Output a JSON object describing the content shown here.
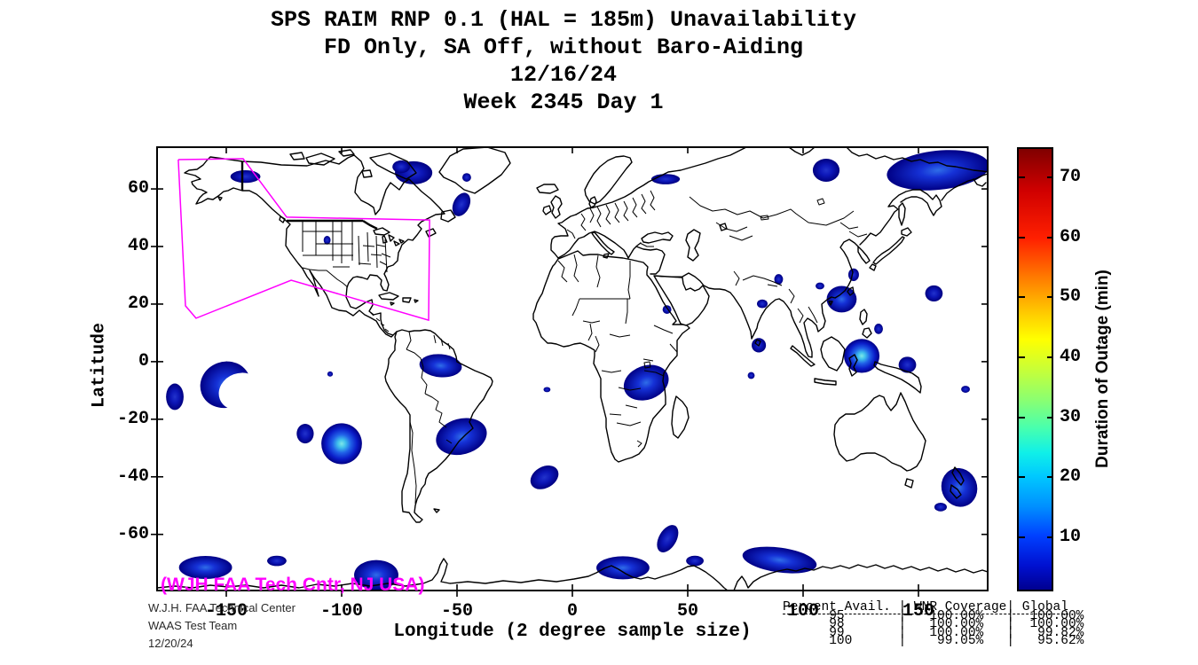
{
  "title_lines": [
    "SPS RAIM RNP 0.1 (HAL = 185m) Unavailability",
    "FD Only, SA Off, without Baro-Aiding",
    "12/16/24",
    "Week 2345 Day 1"
  ],
  "axes": {
    "xlabel": "Longitude (2 degree sample size)",
    "ylabel": "Latitude",
    "x_ticks": [
      -150,
      -100,
      -50,
      0,
      50,
      100,
      150
    ],
    "y_ticks": [
      60,
      40,
      20,
      0,
      -20,
      -40,
      -60
    ],
    "lon_range": [
      -180,
      180
    ],
    "lat_range": [
      -79.5,
      74.5
    ]
  },
  "colorbar": {
    "label": "Duration of Outage (min)",
    "ticks": [
      10,
      20,
      30,
      40,
      50,
      60,
      70
    ],
    "range": [
      1,
      75
    ],
    "colormap": "jet"
  },
  "annotations": {
    "facility": "(WJH FAA Tech Cntr, NJ USA)",
    "credit_lines": [
      "W.J.H. FAA Technical Center",
      "WAAS Test Team",
      "12/20/24"
    ]
  },
  "stats_table": {
    "columns": [
      "Percent Avail.",
      "WNR Coverage",
      "Global"
    ],
    "rows": [
      [
        "95",
        "100.00%",
        "100.00%"
      ],
      [
        "98",
        "100.00%",
        "100.00%"
      ],
      [
        "99",
        "100.00%",
        "99.82%"
      ],
      [
        "100",
        "99.05%",
        "95.62%"
      ]
    ]
  },
  "colors": {
    "coverage_boundary": "#ff00ff",
    "coastline": "#000000",
    "blob_edge": "#000085",
    "blob_mid": "#1531d6",
    "blob_bright_core": "#7fe7e8",
    "background": "#ffffff"
  },
  "chart_data": {
    "type": "heatmap",
    "subtype": "geographic-outage-contour-map",
    "projection": "equirectangular",
    "value_units": "minutes of outage",
    "value_range": [
      1,
      75
    ],
    "coverage_boundary": [
      [
        -170.8,
        70.2
      ],
      [
        -142.7,
        70.5
      ],
      [
        -123.8,
        50.2
      ],
      [
        -61.9,
        49.2
      ],
      [
        -62.3,
        14.4
      ],
      [
        -121.9,
        28.3
      ],
      [
        -163.1,
        15.1
      ],
      [
        -167.7,
        19.4
      ]
    ],
    "outage_regions": [
      {
        "name": "chukotka",
        "lon": 158.5,
        "lat": 66.5,
        "rx_deg": 22.3,
        "ry_deg": 6.8,
        "rot": -6,
        "i": "med"
      },
      {
        "name": "ne-siberia",
        "lon": 110,
        "lat": 66.5,
        "rx_deg": 5.8,
        "ry_deg": 4,
        "rot": 0,
        "i": "dark"
      },
      {
        "name": "alaska",
        "lon": -141.7,
        "lat": 64.3,
        "rx_deg": 6.5,
        "ry_deg": 2.2,
        "rot": 0,
        "i": "dark"
      },
      {
        "name": "baffin-a",
        "lon": -68.8,
        "lat": 65.6,
        "rx_deg": 8.1,
        "ry_deg": 4,
        "rot": 0,
        "i": "dark"
      },
      {
        "name": "baffin-b",
        "lon": -74.2,
        "lat": 67.7,
        "rx_deg": 3.8,
        "ry_deg": 2.2,
        "rot": 0,
        "i": "dark"
      },
      {
        "name": "se-greenland",
        "lon": -45.8,
        "lat": 64,
        "rx_deg": 1.9,
        "ry_deg": 1.5,
        "rot": 0,
        "i": "dark"
      },
      {
        "name": "labrador-sea",
        "lon": -48.1,
        "lat": 54.6,
        "rx_deg": 3.5,
        "ry_deg": 4.3,
        "rot": 25,
        "i": "dark"
      },
      {
        "name": "white-sea",
        "lon": 40.4,
        "lat": 63.4,
        "rx_deg": 6.2,
        "ry_deg": 1.8,
        "rot": 0,
        "i": "dark"
      },
      {
        "name": "us-plains-dot",
        "lon": -106.3,
        "lat": 42.2,
        "rx_deg": 1.5,
        "ry_deg": 1.5,
        "rot": 0,
        "i": "dark"
      },
      {
        "name": "red-sea-dot",
        "lon": 41,
        "lat": 18.1,
        "rx_deg": 1.9,
        "ry_deg": 1.5,
        "rot": 0,
        "i": "dark"
      },
      {
        "name": "himalaya-dot",
        "lon": 89.4,
        "lat": 28.6,
        "rx_deg": 1.9,
        "ry_deg": 1.8,
        "rot": 0,
        "i": "dark"
      },
      {
        "name": "n-india-dot",
        "lon": 82.3,
        "lat": 20.1,
        "rx_deg": 2.3,
        "ry_deg": 1.5,
        "rot": 0,
        "i": "dark"
      },
      {
        "name": "se-india",
        "lon": 80.8,
        "lat": 5.7,
        "rx_deg": 3.1,
        "ry_deg": 2.5,
        "rot": 0,
        "i": "dark"
      },
      {
        "name": "indian-ocean-dot",
        "lon": 77.5,
        "lat": -4.8,
        "rx_deg": 1.5,
        "ry_deg": 1.2,
        "rot": 0,
        "i": "dark"
      },
      {
        "name": "guyana-coast",
        "lon": -57.1,
        "lat": -1.4,
        "rx_deg": 9.2,
        "ry_deg": 4,
        "rot": 5,
        "i": "med"
      },
      {
        "name": "pacific-dot",
        "lon": -105,
        "lat": -4.3,
        "rx_deg": 1.2,
        "ry_deg": 0.9,
        "rot": 0,
        "i": "dark"
      },
      {
        "name": "e-pacific-crescent",
        "lon": -150.4,
        "lat": -8,
        "rx_deg": 11,
        "ry_deg": 8,
        "rot": -20,
        "i": "med",
        "shape": "crescent"
      },
      {
        "name": "dateline-blob",
        "lon": -172.3,
        "lat": -12.2,
        "rx_deg": 3.8,
        "ry_deg": 4.6,
        "rot": 0,
        "i": "dark"
      },
      {
        "name": "se-pacific-small",
        "lon": -115.8,
        "lat": -25,
        "rx_deg": 3.7,
        "ry_deg": 3.4,
        "rot": 0,
        "i": "dark"
      },
      {
        "name": "se-pacific-bright",
        "lon": -100,
        "lat": -28.5,
        "rx_deg": 8.8,
        "ry_deg": 7.1,
        "rot": 0,
        "i": "bright"
      },
      {
        "name": "brazil-coast",
        "lon": -48.1,
        "lat": -26,
        "rx_deg": 11.2,
        "ry_deg": 6.2,
        "rot": -15,
        "i": "med"
      },
      {
        "name": "east-africa",
        "lon": 32,
        "lat": -7.3,
        "rx_deg": 10,
        "ry_deg": 5.9,
        "rot": -20,
        "i": "med"
      },
      {
        "name": "s-atlantic",
        "lon": -12.1,
        "lat": -40.2,
        "rx_deg": 6.5,
        "ry_deg": 3.7,
        "rot": -30,
        "i": "dark"
      },
      {
        "name": "atlantic-dot",
        "lon": -11,
        "lat": -9.7,
        "rx_deg": 1.5,
        "ry_deg": 0.9,
        "rot": 0,
        "i": "dark"
      },
      {
        "name": "se-china",
        "lon": 116.7,
        "lat": 21.7,
        "rx_deg": 6.5,
        "ry_deg": 4.6,
        "rot": 0,
        "i": "med"
      },
      {
        "name": "yellow-sea",
        "lon": 121.9,
        "lat": 30.2,
        "rx_deg": 2.3,
        "ry_de g": 2.2,
        "ry_deg": 2.2,
        "rot": 0,
        "i": "dark"
      },
      {
        "name": "s-china-dot",
        "lon": 107.3,
        "lat": 26.3,
        "rx_deg": 1.9,
        "ry_deg": 1.2,
        "rot": 0,
        "i": "dark"
      },
      {
        "name": "pacific-e-japan",
        "lon": 156.7,
        "lat": 23.7,
        "rx_deg": 3.8,
        "ry_deg": 2.8,
        "rot": 0,
        "i": "dark"
      },
      {
        "name": "philippines-borneo",
        "lon": 125.4,
        "lat": 2,
        "rx_deg": 7.7,
        "ry_deg": 5.9,
        "rot": 0,
        "i": "bright"
      },
      {
        "name": "new-guinea-e",
        "lon": 145.2,
        "lat": -1.1,
        "rx_deg": 3.8,
        "ry_deg": 2.8,
        "rot": 0,
        "i": "dark"
      },
      {
        "name": "palau-dot",
        "lon": 132.7,
        "lat": 11.4,
        "rx_deg": 1.9,
        "ry_deg": 1.8,
        "rot": 0,
        "i": "dark"
      },
      {
        "name": "new-zealand",
        "lon": 167.7,
        "lat": -43.7,
        "rx_deg": 7.7,
        "ry_deg": 6.8,
        "rot": -20,
        "i": "med"
      },
      {
        "name": "nz-south-dot",
        "lon": 159.6,
        "lat": -50.5,
        "rx_deg": 2.7,
        "ry_deg": 1.5,
        "rot": 0,
        "i": "dark"
      },
      {
        "name": "fiji-dot",
        "lon": 170.4,
        "lat": -9.6,
        "rx_deg": 1.9,
        "ry_deg": 1.2,
        "rot": 0,
        "i": "dark"
      },
      {
        "name": "antarctic-a",
        "lon": -159,
        "lat": -71.5,
        "rx_deg": 11.5,
        "ry_deg": 4,
        "rot": 0,
        "i": "med"
      },
      {
        "name": "antarctic-b",
        "lon": -128.1,
        "lat": -69.2,
        "rx_deg": 4.2,
        "ry_deg": 1.8,
        "rot": 0,
        "i": "dark"
      },
      {
        "name": "antarctic-c",
        "lon": 21.9,
        "lat": -71.6,
        "rx_deg": 11.5,
        "ry_deg": 4,
        "rot": 0,
        "i": "med"
      },
      {
        "name": "s-indian-diag",
        "lon": 41.3,
        "lat": -61.5,
        "rx_deg": 3.8,
        "ry_deg": 5.2,
        "rot": 30,
        "i": "dark"
      },
      {
        "name": "antarctic-e",
        "lon": 53.1,
        "lat": -69.2,
        "rx_deg": 3.8,
        "ry_deg": 1.8,
        "rot": 0,
        "i": "dark"
      },
      {
        "name": "antarctic-f",
        "lon": 89.8,
        "lat": -68.9,
        "rx_deg": 16.2,
        "ry_deg": 4.3,
        "rot": 8,
        "i": "med"
      },
      {
        "name": "antarctic-g",
        "lon": -85,
        "lat": -74.1,
        "rx_deg": 9.6,
        "ry_deg": 5.2,
        "rot": 0,
        "i": "med"
      }
    ]
  }
}
